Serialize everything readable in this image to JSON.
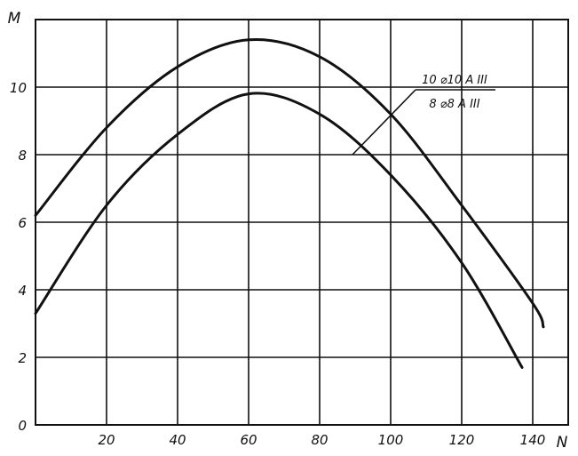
{
  "chart_data": {
    "type": "line",
    "xlabel": "N",
    "ylabel": "M",
    "xlim": [
      0,
      150
    ],
    "ylim": [
      0,
      12
    ],
    "x_ticks": [
      20,
      40,
      60,
      80,
      100,
      120,
      140
    ],
    "y_ticks": [
      0,
      2,
      4,
      6,
      8,
      10
    ],
    "grid": true,
    "legend_position": "top-right",
    "series": [
      {
        "name": "10 ⌀10 A III",
        "x": [
          0,
          20,
          40,
          60,
          80,
          100,
          120,
          140,
          143
        ],
        "y": [
          6.2,
          8.8,
          10.6,
          11.4,
          10.9,
          9.2,
          6.5,
          3.6,
          2.9
        ]
      },
      {
        "name": "8 ⌀8 A III",
        "x": [
          0,
          20,
          40,
          60,
          80,
          100,
          120,
          137
        ],
        "y": [
          3.3,
          6.5,
          8.6,
          9.8,
          9.2,
          7.4,
          4.8,
          1.7
        ]
      }
    ]
  }
}
